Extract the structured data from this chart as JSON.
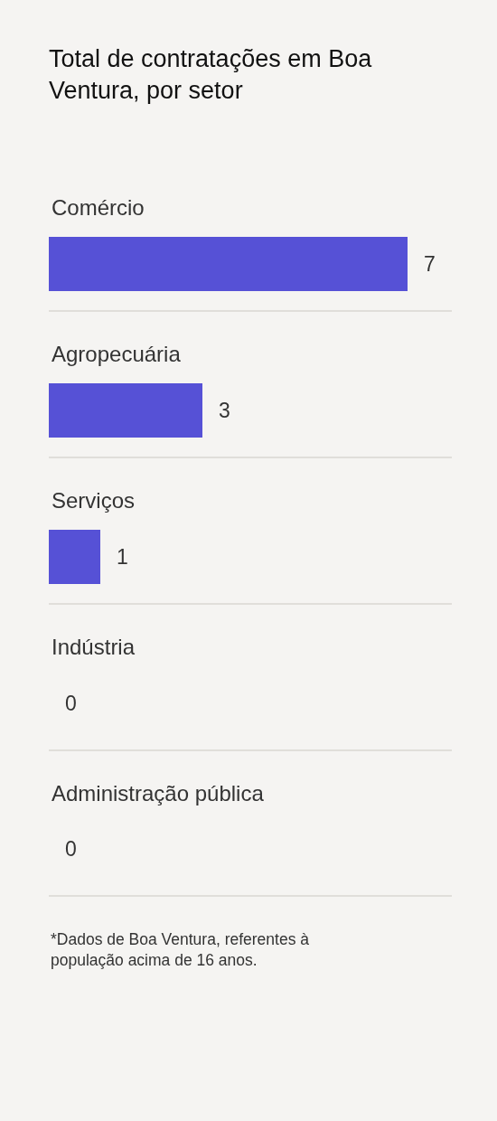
{
  "chart_data": {
    "type": "bar",
    "orientation": "horizontal",
    "title": "Total de contratações em Boa Ventura, por setor",
    "categories": [
      "Comércio",
      "Agropecuária",
      "Serviços",
      "Indústria",
      "Administração pública"
    ],
    "values": [
      7,
      3,
      1,
      0,
      0
    ],
    "color": "#5651d6",
    "data_labels": true,
    "grid": "y",
    "annotations": [
      "*Dados de Boa Ventura, referentes à população acima de 16 anos."
    ]
  }
}
